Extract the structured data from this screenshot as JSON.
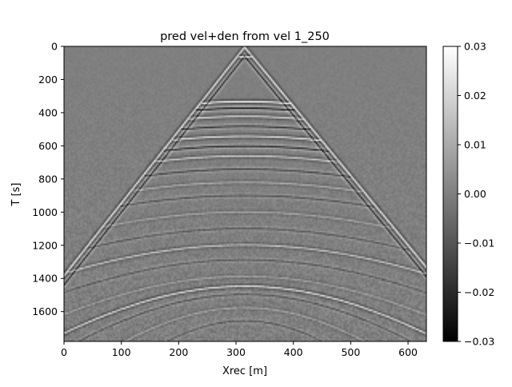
{
  "chart_data": {
    "type": "heatmap",
    "title": "pred vel+den from vel 1_250",
    "xlabel": "Xrec [m]",
    "ylabel": "T [s]",
    "xlim": [
      0,
      632
    ],
    "ylim": [
      1780,
      0
    ],
    "x_ticks": [
      0,
      100,
      200,
      300,
      400,
      500,
      600
    ],
    "y_ticks": [
      0,
      200,
      400,
      600,
      800,
      1000,
      1200,
      1400,
      1600
    ],
    "colormap": "gray",
    "colorbar": {
      "vmin": -0.03,
      "vmax": 0.03,
      "ticks": [
        0.03,
        0.02,
        0.01,
        0.0,
        -0.01,
        -0.02,
        -0.03
      ],
      "tick_labels": [
        "0.03",
        "0.02",
        "0.01",
        "0.00",
        "−0.01",
        "−0.02",
        "−0.03"
      ]
    },
    "events": {
      "source_x": 315,
      "direct_wave": {
        "apex_t": 0,
        "t_at_x0": 1380,
        "t_at_x632": 1330,
        "amplitude": 0.03
      },
      "reflections": [
        {
          "apex_t": 60,
          "curvature": 0.0095,
          "amplitude": 0.03
        },
        {
          "apex_t": 330,
          "curvature": 0.0058,
          "amplitude": 0.03
        },
        {
          "apex_t": 370,
          "curvature": 0.0056,
          "amplitude": -0.025
        },
        {
          "apex_t": 420,
          "curvature": 0.0054,
          "amplitude": 0.022
        },
        {
          "apex_t": 480,
          "curvature": 0.0052,
          "amplitude": -0.02
        },
        {
          "apex_t": 540,
          "curvature": 0.005,
          "amplitude": 0.025
        },
        {
          "apex_t": 600,
          "curvature": 0.0048,
          "amplitude": -0.022
        },
        {
          "apex_t": 660,
          "curvature": 0.0046,
          "amplitude": 0.02
        },
        {
          "apex_t": 740,
          "curvature": 0.0044,
          "amplitude": -0.015
        },
        {
          "apex_t": 820,
          "curvature": 0.0042,
          "amplitude": 0.012
        },
        {
          "apex_t": 900,
          "curvature": 0.004,
          "amplitude": -0.012
        },
        {
          "apex_t": 1000,
          "curvature": 0.0036,
          "amplitude": 0.01
        },
        {
          "apex_t": 1100,
          "curvature": 0.0033,
          "amplitude": -0.01
        },
        {
          "apex_t": 1200,
          "curvature": 0.003,
          "amplitude": 0.018
        },
        {
          "apex_t": 1290,
          "curvature": 0.0027,
          "amplitude": -0.01
        },
        {
          "apex_t": 1390,
          "curvature": 0.0024,
          "amplitude": 0.009
        },
        {
          "apex_t": 1450,
          "curvature": 0.0021,
          "amplitude": 0.025
        },
        {
          "apex_t": 1500,
          "curvature": 0.0019,
          "amplitude": -0.012
        },
        {
          "apex_t": 1580,
          "curvature": 0.0016,
          "amplitude": 0.01
        },
        {
          "apex_t": 1660,
          "curvature": 0.0013,
          "amplitude": -0.01
        }
      ]
    }
  }
}
